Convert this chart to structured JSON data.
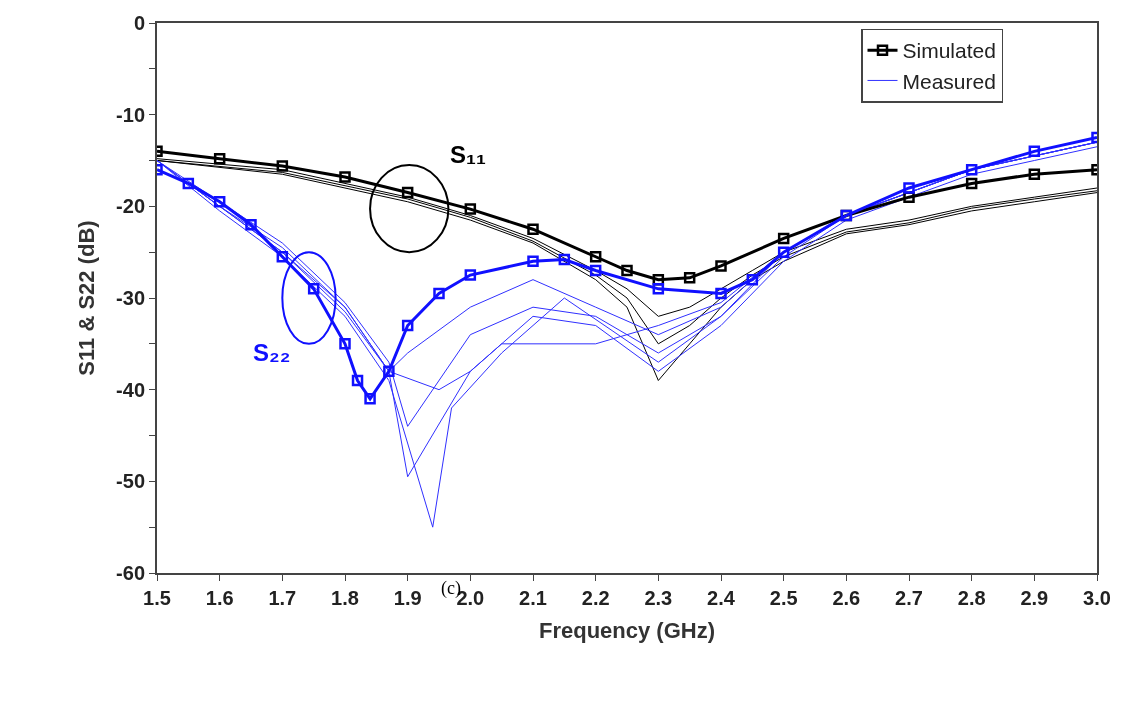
{
  "chart_data": {
    "type": "line",
    "xlabel": "Frequency (GHz)",
    "ylabel": "S11 & S22 (dB)",
    "xlim": [
      1.5,
      3.0
    ],
    "xticks": [
      {
        "value": 1.5,
        "label": "1.5"
      },
      {
        "value": 1.6,
        "label": "1.6"
      },
      {
        "value": 1.7,
        "label": "1.7"
      },
      {
        "value": 1.8,
        "label": "1.8"
      },
      {
        "value": 1.9,
        "label": "1.9"
      },
      {
        "value": 2.0,
        "label": "2.0"
      },
      {
        "value": 2.1,
        "label": "2.1"
      },
      {
        "value": 2.2,
        "label": "2.2"
      },
      {
        "value": 2.3,
        "label": "2.3"
      },
      {
        "value": 2.4,
        "label": "2.4"
      },
      {
        "value": 2.5,
        "label": "2.5"
      },
      {
        "value": 2.6,
        "label": "2.6"
      },
      {
        "value": 2.7,
        "label": "2.7"
      },
      {
        "value": 2.8,
        "label": "2.8"
      },
      {
        "value": 2.9,
        "label": "2.9"
      },
      {
        "value": 3.0,
        "label": "3.0"
      }
    ],
    "ylim": [
      -60,
      0
    ],
    "yticks": [
      {
        "value": -60,
        "label": "-60"
      },
      {
        "value": -55,
        "label": null
      },
      {
        "value": -50,
        "label": "-50"
      },
      {
        "value": -45,
        "label": null
      },
      {
        "value": -40,
        "label": "-40"
      },
      {
        "value": -35,
        "label": null
      },
      {
        "value": -30,
        "label": "-30"
      },
      {
        "value": -25,
        "label": null
      },
      {
        "value": -20,
        "label": "-20"
      },
      {
        "value": -15,
        "label": null
      },
      {
        "value": -10,
        "label": "-10"
      },
      {
        "value": -5,
        "label": null
      },
      {
        "value": 0,
        "label": "0"
      }
    ],
    "legend": "top right",
    "series": [
      {
        "color": "#000000",
        "line_style": "solid",
        "x": [
          1.5,
          1.7,
          1.9,
          2.0,
          2.1,
          2.2,
          2.25,
          2.3,
          2.35,
          2.4,
          2.45,
          2.5,
          2.6,
          2.7,
          2.8,
          2.9,
          3.0
        ],
        "values": [
          -15,
          -16.5,
          -19.5,
          -21.5,
          -24,
          -28,
          -31,
          -39,
          -35,
          -31,
          -28,
          -26,
          -23,
          -22,
          -20.5,
          -19.5,
          -18.5
        ]
      },
      {
        "color": "#000000",
        "line_style": "solid",
        "x": [
          1.5,
          1.7,
          1.9,
          2.0,
          2.1,
          2.2,
          2.25,
          2.3,
          2.35,
          2.4,
          2.45,
          2.5,
          2.6,
          2.7,
          2.8,
          2.9,
          3.0
        ],
        "values": [
          -15,
          -16.3,
          -19.2,
          -21.2,
          -23.8,
          -27.5,
          -30,
          -35,
          -33,
          -30,
          -27.5,
          -25.5,
          -22.8,
          -21.8,
          -20.2,
          -19.2,
          -18.3
        ]
      },
      {
        "color": "#000000",
        "line_style": "solid",
        "x": [
          1.5,
          1.7,
          1.9,
          2.0,
          2.1,
          2.2,
          2.25,
          2.3,
          2.35,
          2.4,
          2.45,
          2.5,
          2.6,
          2.7,
          2.8,
          2.9,
          3.0
        ],
        "values": [
          -14.8,
          -16,
          -19,
          -21,
          -23.5,
          -27,
          -29,
          -32,
          -31,
          -29,
          -27,
          -25,
          -22.5,
          -21.5,
          -20,
          -19,
          -18
        ]
      },
      {
        "color": "#3030ff",
        "line_style": "solid",
        "x": [
          1.5,
          1.6,
          1.7,
          1.8,
          1.87,
          1.9,
          2.0,
          2.1,
          2.2,
          2.3,
          2.4,
          2.5,
          2.6,
          2.7,
          2.8,
          2.9,
          3.0
        ],
        "values": [
          -15,
          -20,
          -24.5,
          -31,
          -38,
          -36,
          -31,
          -28,
          -31,
          -34,
          -31,
          -25,
          -21,
          -18.5,
          -16,
          -14.5,
          -13
        ]
      },
      {
        "color": "#3030ff",
        "line_style": "solid",
        "x": [
          1.5,
          1.6,
          1.7,
          1.8,
          1.87,
          1.9,
          2.0,
          2.1,
          2.2,
          2.3,
          2.4,
          2.5,
          2.6,
          2.7,
          2.8,
          2.9,
          3.0
        ],
        "values": [
          -15,
          -20,
          -25,
          -31.5,
          -38,
          -49.5,
          -38,
          -32,
          -33,
          -38,
          -33,
          -26,
          -21.5,
          -19,
          -16.5,
          -15,
          -13.5
        ]
      },
      {
        "color": "#3030ff",
        "line_style": "solid",
        "x": [
          1.5,
          1.6,
          1.7,
          1.8,
          1.87,
          1.94,
          1.97,
          2.05,
          2.15,
          2.3,
          2.4,
          2.5,
          2.6,
          2.7,
          2.8,
          2.9,
          3.0
        ],
        "values": [
          -15,
          -20.5,
          -25.5,
          -32,
          -39,
          -55,
          -42,
          -36,
          -30,
          -37,
          -32,
          -25.5,
          -21,
          -18.5,
          -16,
          -14.5,
          -13
        ]
      },
      {
        "color": "#3030ff",
        "line_style": "solid",
        "x": [
          1.5,
          1.6,
          1.7,
          1.8,
          1.87,
          1.9,
          2.0,
          2.1,
          2.2,
          2.3,
          2.4,
          2.5,
          2.6,
          2.7,
          2.8,
          2.9,
          3.0
        ],
        "values": [
          -15,
          -19.5,
          -24,
          -30.5,
          -37,
          -44,
          -34,
          -31,
          -32,
          -36,
          -32,
          -25,
          -21,
          -18.5,
          -16,
          -14.5,
          -13
        ]
      },
      {
        "name": "Measured",
        "color": "#3030ff",
        "line_style": "solid",
        "x": [
          1.5,
          1.6,
          1.7,
          1.8,
          1.87,
          1.95,
          2.0,
          2.05,
          2.2,
          2.3,
          2.4,
          2.5,
          2.6,
          2.7,
          2.8,
          2.9,
          3.0
        ],
        "values": [
          -15,
          -20,
          -25,
          -31,
          -38,
          -40,
          -38,
          -35,
          -35,
          -33,
          -30.5,
          -25,
          -21,
          -18.5,
          -16,
          -14.5,
          -13
        ]
      },
      {
        "name": "Simulated",
        "color": "#000000",
        "marker": "square",
        "x": [
          1.5,
          1.6,
          1.7,
          1.8,
          1.9,
          2.0,
          2.1,
          2.2,
          2.25,
          2.3,
          2.35,
          2.4,
          2.5,
          2.6,
          2.7,
          2.8,
          2.9,
          3.0
        ],
        "values": [
          -14,
          -14.8,
          -15.6,
          -16.8,
          -18.5,
          -20.3,
          -22.5,
          -25.5,
          -27,
          -28,
          -27.8,
          -26.5,
          -23.5,
          -21,
          -19,
          -17.5,
          -16.5,
          -16
        ]
      },
      {
        "color": "#1010ff",
        "marker": "square",
        "x": [
          1.5,
          1.55,
          1.6,
          1.65,
          1.7,
          1.75,
          1.8,
          1.82,
          1.84,
          1.87,
          1.9,
          1.95,
          2.0,
          2.1,
          2.15,
          2.2,
          2.3,
          2.4,
          2.45,
          2.5,
          2.6,
          2.7,
          2.8,
          2.9,
          3.0
        ],
        "values": [
          -16,
          -17.5,
          -19.5,
          -22,
          -25.5,
          -29,
          -35,
          -39,
          -41,
          -38,
          -33,
          -29.5,
          -27.5,
          -26,
          -25.8,
          -27,
          -29,
          -29.5,
          -28,
          -25,
          -21,
          -18,
          -16,
          -14,
          -12.5
        ]
      }
    ],
    "annotations": [
      "S₁₁",
      "S₂₂",
      "(c)"
    ]
  }
}
